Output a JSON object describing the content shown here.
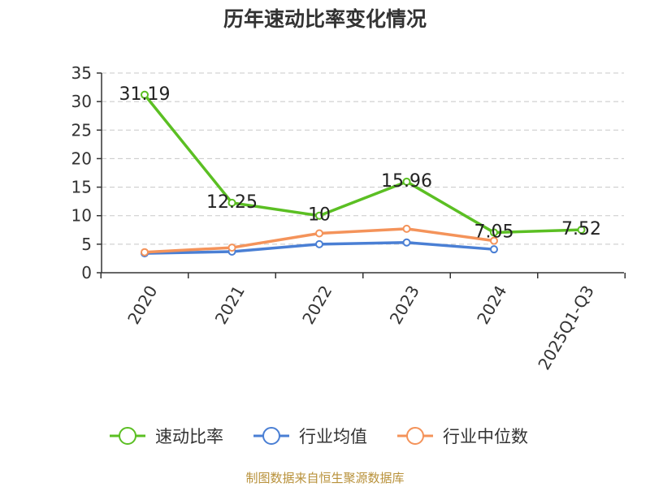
{
  "title": "历年速动比率变化情况",
  "source": "制图数据来自恒生聚源数据库",
  "colors": {
    "quick_ratio": "#5bbf23",
    "industry_mean": "#4a7fd4",
    "industry_median": "#f4935a"
  },
  "chart_data": {
    "type": "line",
    "title": "历年速动比率变化情况",
    "categories": [
      "2020",
      "2021",
      "2022",
      "2023",
      "2024",
      "2025Q1-Q3"
    ],
    "ylim": [
      0,
      35
    ],
    "yticks": [
      0,
      5,
      10,
      15,
      20,
      25,
      30,
      35
    ],
    "grid": true,
    "legend_position": "bottom",
    "series": [
      {
        "name": "速动比率",
        "color": "#5bbf23",
        "values": [
          31.19,
          12.25,
          10,
          15.96,
          7.05,
          7.52
        ],
        "labels": [
          "31.19",
          "12.25",
          "10",
          "15.96",
          "7.05",
          "7.52"
        ]
      },
      {
        "name": "行业均值",
        "color": "#4a7fd4",
        "values": [
          3.4,
          3.7,
          5.0,
          5.3,
          4.1,
          null
        ]
      },
      {
        "name": "行业中位数",
        "color": "#f4935a",
        "values": [
          3.6,
          4.4,
          6.9,
          7.7,
          5.6,
          null
        ]
      }
    ]
  }
}
